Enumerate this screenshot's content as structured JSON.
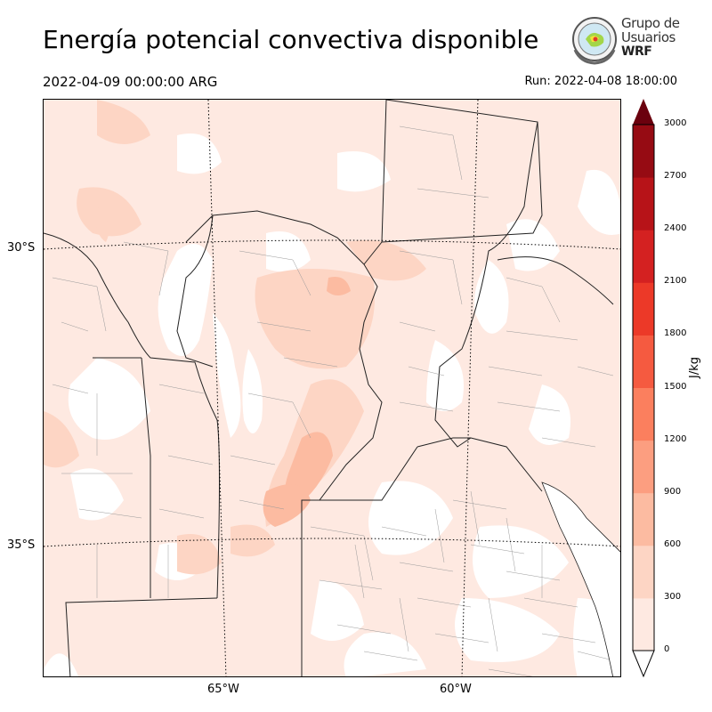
{
  "title": "Energía potencial convectiva disponible",
  "valid_time": "2022-04-09 00:00:00 ARG",
  "run_time": "Run: 2022-04-08 18:00:00",
  "logo": {
    "line1": "Grupo de",
    "line2": "Usuarios",
    "line3": "WRF"
  },
  "map": {
    "lat_labels": [
      "30°S",
      "35°S"
    ],
    "lon_labels": [
      "65°W",
      "60°W"
    ]
  },
  "colorbar": {
    "label": "J/kg",
    "ticks": [
      "0",
      "300",
      "600",
      "900",
      "1200",
      "1500",
      "1800",
      "2100",
      "2400",
      "2700",
      "3000"
    ],
    "colors": [
      "#fee9e1",
      "#fdd5c4",
      "#fcbba1",
      "#fc9e80",
      "#fb7f5e",
      "#f55a40",
      "#ec3928",
      "#d42121",
      "#b71318",
      "#960b13",
      "#6b010e"
    ],
    "extend": "both"
  }
}
